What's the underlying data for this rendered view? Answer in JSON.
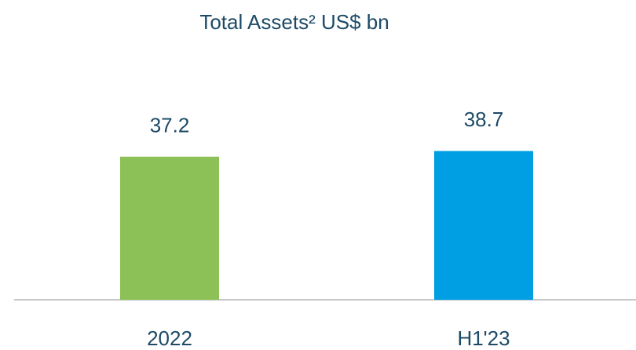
{
  "chart_data": {
    "type": "bar",
    "title": "Total Assets² US$ bn",
    "categories": [
      "2022",
      "H1'23"
    ],
    "values": [
      37.2,
      38.7
    ],
    "colors": [
      "#8cc158",
      "#009fe3"
    ],
    "ylim": [
      0,
      40
    ]
  }
}
